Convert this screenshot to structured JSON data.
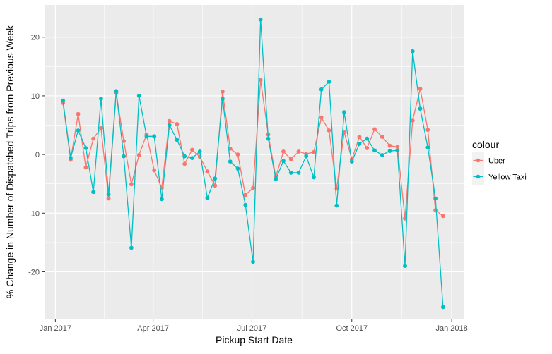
{
  "chart_data": {
    "type": "line",
    "title": "",
    "xlabel": "Pickup Start Date",
    "ylabel": "% Change in Number of Dispatched Trips from Previous Week",
    "xlim": [
      "2016-12-22",
      "2018-01-12"
    ],
    "ylim": [
      -28,
      25.5
    ],
    "x_ticks": [
      {
        "date": "2017-01-01",
        "label": "Jan 2017"
      },
      {
        "date": "2017-04-01",
        "label": "Apr 2017"
      },
      {
        "date": "2017-07-01",
        "label": "Jul 2017"
      },
      {
        "date": "2017-10-01",
        "label": "Oct 2017"
      },
      {
        "date": "2018-01-01",
        "label": "Jan 2018"
      }
    ],
    "y_ticks": [
      20,
      10,
      0,
      -10,
      -20
    ],
    "grid": true,
    "legend": {
      "title": "colour",
      "position": "right"
    },
    "x": [
      "2017-01-08",
      "2017-01-15",
      "2017-01-22",
      "2017-01-29",
      "2017-02-05",
      "2017-02-12",
      "2017-02-19",
      "2017-02-26",
      "2017-03-05",
      "2017-03-12",
      "2017-03-19",
      "2017-03-26",
      "2017-04-02",
      "2017-04-09",
      "2017-04-16",
      "2017-04-23",
      "2017-04-30",
      "2017-05-07",
      "2017-05-14",
      "2017-05-21",
      "2017-05-28",
      "2017-06-04",
      "2017-06-11",
      "2017-06-18",
      "2017-06-25",
      "2017-07-02",
      "2017-07-09",
      "2017-07-16",
      "2017-07-23",
      "2017-07-30",
      "2017-08-06",
      "2017-08-13",
      "2017-08-20",
      "2017-08-27",
      "2017-09-03",
      "2017-09-10",
      "2017-09-17",
      "2017-09-24",
      "2017-10-01",
      "2017-10-08",
      "2017-10-15",
      "2017-10-22",
      "2017-10-29",
      "2017-11-05",
      "2017-11-12",
      "2017-11-19",
      "2017-11-26",
      "2017-12-03",
      "2017-12-10",
      "2017-12-17",
      "2017-12-24",
      "2017-12-31"
    ],
    "series": [
      {
        "name": "Uber",
        "color": "#F8766D",
        "values": [
          8.8,
          -0.9,
          6.9,
          -2.2,
          2.7,
          4.5,
          -7.5,
          10.5,
          2.3,
          -5.1,
          -0.1,
          3.4,
          -2.7,
          -5.7,
          5.7,
          5.2,
          -1.6,
          0.8,
          -0.4,
          -2.9,
          -5.3,
          10.7,
          1.0,
          0.0,
          -6.9,
          -5.7,
          12.7,
          3.4,
          -3.8,
          0.5,
          -0.8,
          0.5,
          0.1,
          0.4,
          6.3,
          4.1,
          -5.8,
          3.8,
          -0.8,
          3.0,
          1.1,
          4.3,
          3.0,
          1.5,
          1.3,
          -10.9,
          5.8,
          11.2,
          4.2,
          -9.5,
          -10.5,
          null
        ]
      },
      {
        "name": "Yellow Taxi",
        "color": "#00BFC4",
        "values": [
          9.2,
          -0.6,
          4.1,
          1.1,
          -6.4,
          9.5,
          -6.8,
          10.8,
          -0.3,
          -15.9,
          10.0,
          3.1,
          3.1,
          -7.6,
          5.0,
          2.5,
          -0.3,
          -0.6,
          0.5,
          -7.4,
          -4.1,
          9.5,
          -1.2,
          -2.4,
          -8.6,
          -18.3,
          23.0,
          2.7,
          -4.2,
          -1.1,
          -3.1,
          -3.1,
          -0.3,
          -3.9,
          11.1,
          12.4,
          -8.7,
          7.2,
          -1.2,
          1.8,
          2.7,
          0.7,
          -0.1,
          0.6,
          0.7,
          -19.0,
          17.6,
          7.8,
          1.2,
          -7.5,
          -26.0,
          null
        ]
      }
    ]
  }
}
